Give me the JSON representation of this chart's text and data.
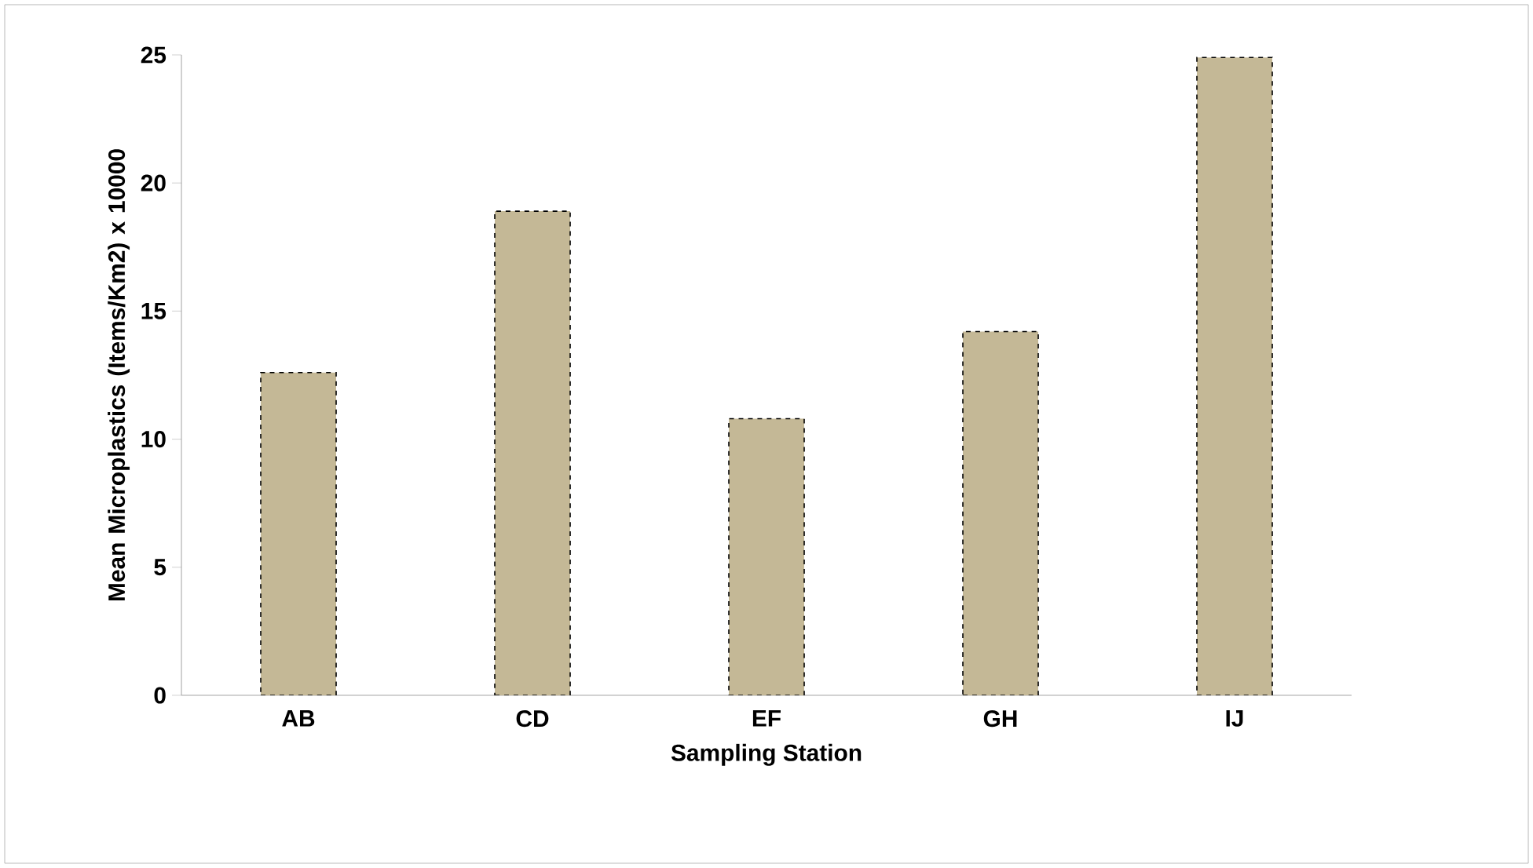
{
  "chart_data": {
    "type": "bar",
    "xlabel": "Sampling Station",
    "ylabel": "Mean Microplastics  (Items/Km2) x 10000",
    "categories": [
      "AB",
      "CD",
      "EF",
      "GH",
      "IJ"
    ],
    "values": [
      12.6,
      18.9,
      10.8,
      14.2,
      24.9
    ],
    "color": "#c4b896",
    "ylim": [
      0,
      25
    ],
    "yticks": [
      0,
      5,
      10,
      15,
      20,
      25
    ],
    "grid": false
  }
}
